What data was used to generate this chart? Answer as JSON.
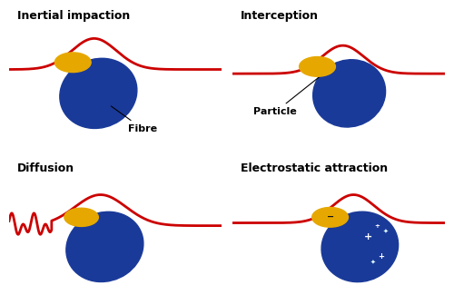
{
  "background_color": "#ffffff",
  "fibre_color": "#1a3a99",
  "particle_color": "#e6a800",
  "line_color": "#cc0000",
  "text_color": "#000000",
  "label_fontsize": 9,
  "ann_fontsize": 8,
  "panels": [
    {
      "label": "Inertial impaction",
      "mechanism": "inertial"
    },
    {
      "label": "Interception",
      "mechanism": "interception"
    },
    {
      "label": "Diffusion",
      "mechanism": "diffusion"
    },
    {
      "label": "Electrostatic attraction",
      "mechanism": "electrostatic"
    }
  ]
}
